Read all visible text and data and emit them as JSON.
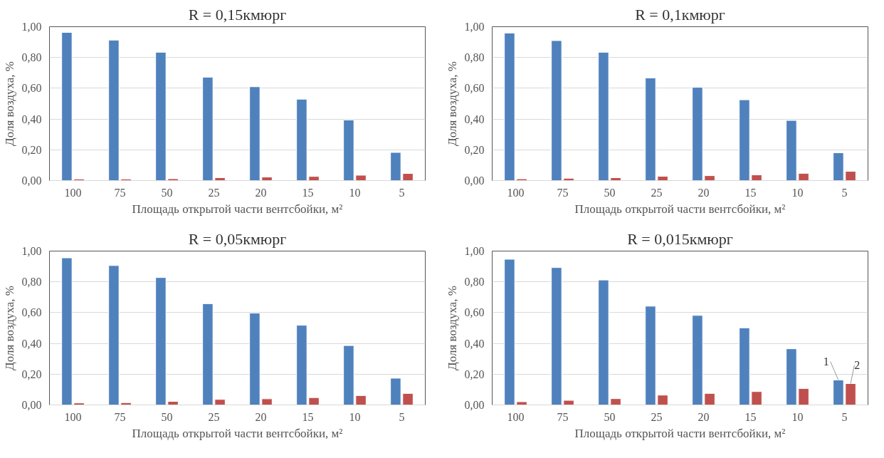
{
  "chart_data": [
    {
      "type": "bar",
      "title": "R = 0,15кмюрг",
      "xlabel": "Площадь открытой части вентсбойки, м²",
      "ylabel": "Доля воздуха, %",
      "categories": [
        "100",
        "75",
        "50",
        "25",
        "20",
        "15",
        "10",
        "5"
      ],
      "series": [
        {
          "color": "#4f81bd",
          "values": [
            0.963,
            0.913,
            0.834,
            0.672,
            0.61,
            0.529,
            0.394,
            0.183
          ]
        },
        {
          "color": "#c0504d",
          "values": [
            0.01,
            0.01,
            0.012,
            0.019,
            0.023,
            0.027,
            0.035,
            0.046
          ]
        }
      ],
      "ylim": [
        0,
        1
      ],
      "yticks": [
        {
          "value": 0,
          "label": "0,00"
        },
        {
          "value": 0.2,
          "label": "0,20"
        },
        {
          "value": 0.4,
          "label": "0,40"
        },
        {
          "value": 0.6,
          "label": "0,60"
        },
        {
          "value": 0.8,
          "label": "0,80"
        },
        {
          "value": 1,
          "label": "1,00"
        }
      ],
      "grid": "y"
    },
    {
      "type": "bar",
      "title": "R = 0,1кмюрг",
      "xlabel": "Площадь открытой части вентсбойки, м²",
      "ylabel": "Доля воздуха, %",
      "categories": [
        "100",
        "75",
        "50",
        "25",
        "20",
        "15",
        "10",
        "5"
      ],
      "series": [
        {
          "color": "#4f81bd",
          "values": [
            0.959,
            0.91,
            0.834,
            0.667,
            0.606,
            0.525,
            0.391,
            0.181
          ]
        },
        {
          "color": "#c0504d",
          "values": [
            0.011,
            0.015,
            0.019,
            0.028,
            0.032,
            0.037,
            0.047,
            0.06
          ]
        }
      ],
      "ylim": [
        0,
        1
      ],
      "yticks": [
        {
          "value": 0,
          "label": "0,00"
        },
        {
          "value": 0.2,
          "label": "0,20"
        },
        {
          "value": 0.4,
          "label": "0,40"
        },
        {
          "value": 0.6,
          "label": "0,60"
        },
        {
          "value": 0.8,
          "label": "0,80"
        },
        {
          "value": 1,
          "label": "1,00"
        }
      ],
      "grid": "y"
    },
    {
      "type": "bar",
      "title": "R = 0,05кмюрг",
      "xlabel": "Площадь открытой части вентсбойки, м²",
      "ylabel": "Доля воздуха, %",
      "categories": [
        "100",
        "75",
        "50",
        "25",
        "20",
        "15",
        "10",
        "5"
      ],
      "series": [
        {
          "color": "#4f81bd",
          "values": [
            0.956,
            0.906,
            0.828,
            0.658,
            0.597,
            0.518,
            0.386,
            0.174
          ]
        },
        {
          "color": "#c0504d",
          "values": [
            0.013,
            0.015,
            0.023,
            0.036,
            0.04,
            0.048,
            0.061,
            0.075
          ]
        }
      ],
      "ylim": [
        0,
        1
      ],
      "yticks": [
        {
          "value": 0,
          "label": "0,00"
        },
        {
          "value": 0.2,
          "label": "0,20"
        },
        {
          "value": 0.4,
          "label": "0,40"
        },
        {
          "value": 0.6,
          "label": "0,60"
        },
        {
          "value": 0.8,
          "label": "0,80"
        },
        {
          "value": 1,
          "label": "1,00"
        }
      ],
      "grid": "y"
    },
    {
      "type": "bar",
      "title": "R = 0,015кмюрг",
      "xlabel": "Площадь открытой части вентсбойки, м²",
      "ylabel": "Доля воздуха, %",
      "categories": [
        "100",
        "75",
        "50",
        "25",
        "20",
        "15",
        "10",
        "5"
      ],
      "series": [
        {
          "color": "#4f81bd",
          "values": [
            0.947,
            0.893,
            0.812,
            0.642,
            0.582,
            0.501,
            0.365,
            0.162
          ]
        },
        {
          "color": "#c0504d",
          "values": [
            0.021,
            0.03,
            0.041,
            0.064,
            0.075,
            0.087,
            0.107,
            0.139
          ]
        }
      ],
      "ylim": [
        0,
        1
      ],
      "yticks": [
        {
          "value": 0,
          "label": "0,00"
        },
        {
          "value": 0.2,
          "label": "0,20"
        },
        {
          "value": 0.4,
          "label": "0,40"
        },
        {
          "value": 0.6,
          "label": "0,60"
        },
        {
          "value": 0.8,
          "label": "0,80"
        },
        {
          "value": 1,
          "label": "1,00"
        }
      ],
      "grid": "y",
      "annotations": [
        {
          "text": "1",
          "x": "5",
          "y": 0.162
        },
        {
          "text": "2",
          "x": "5",
          "y": 0.139
        }
      ]
    }
  ]
}
